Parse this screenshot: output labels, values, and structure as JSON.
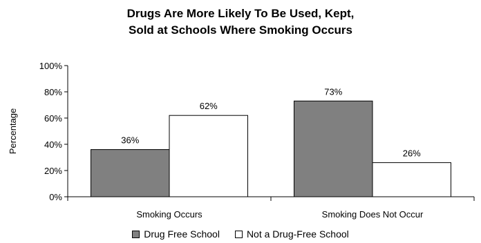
{
  "chart_data": {
    "type": "bar",
    "title_lines": [
      "Drugs Are More Likely To Be Used, Kept,",
      "Sold at Schools Where Smoking Occurs"
    ],
    "ylabel": "Percentage",
    "xlabel": "",
    "categories": [
      "Smoking Occurs",
      "Smoking Does Not Occur"
    ],
    "series": [
      {
        "name": "Drug Free School",
        "values": [
          36,
          73
        ],
        "labels": [
          "36%",
          "73%"
        ],
        "color": "#808080"
      },
      {
        "name": "Not a Drug-Free School",
        "values": [
          62,
          26
        ],
        "labels": [
          "62%",
          "26%"
        ],
        "color": "#ffffff"
      }
    ],
    "ylim": [
      0,
      100
    ],
    "yticks": [
      0,
      20,
      40,
      60,
      80,
      100
    ],
    "ytick_labels": [
      "0%",
      "20%",
      "40%",
      "60%",
      "80%",
      "100%"
    ],
    "grid": false,
    "legend_position": "bottom"
  }
}
